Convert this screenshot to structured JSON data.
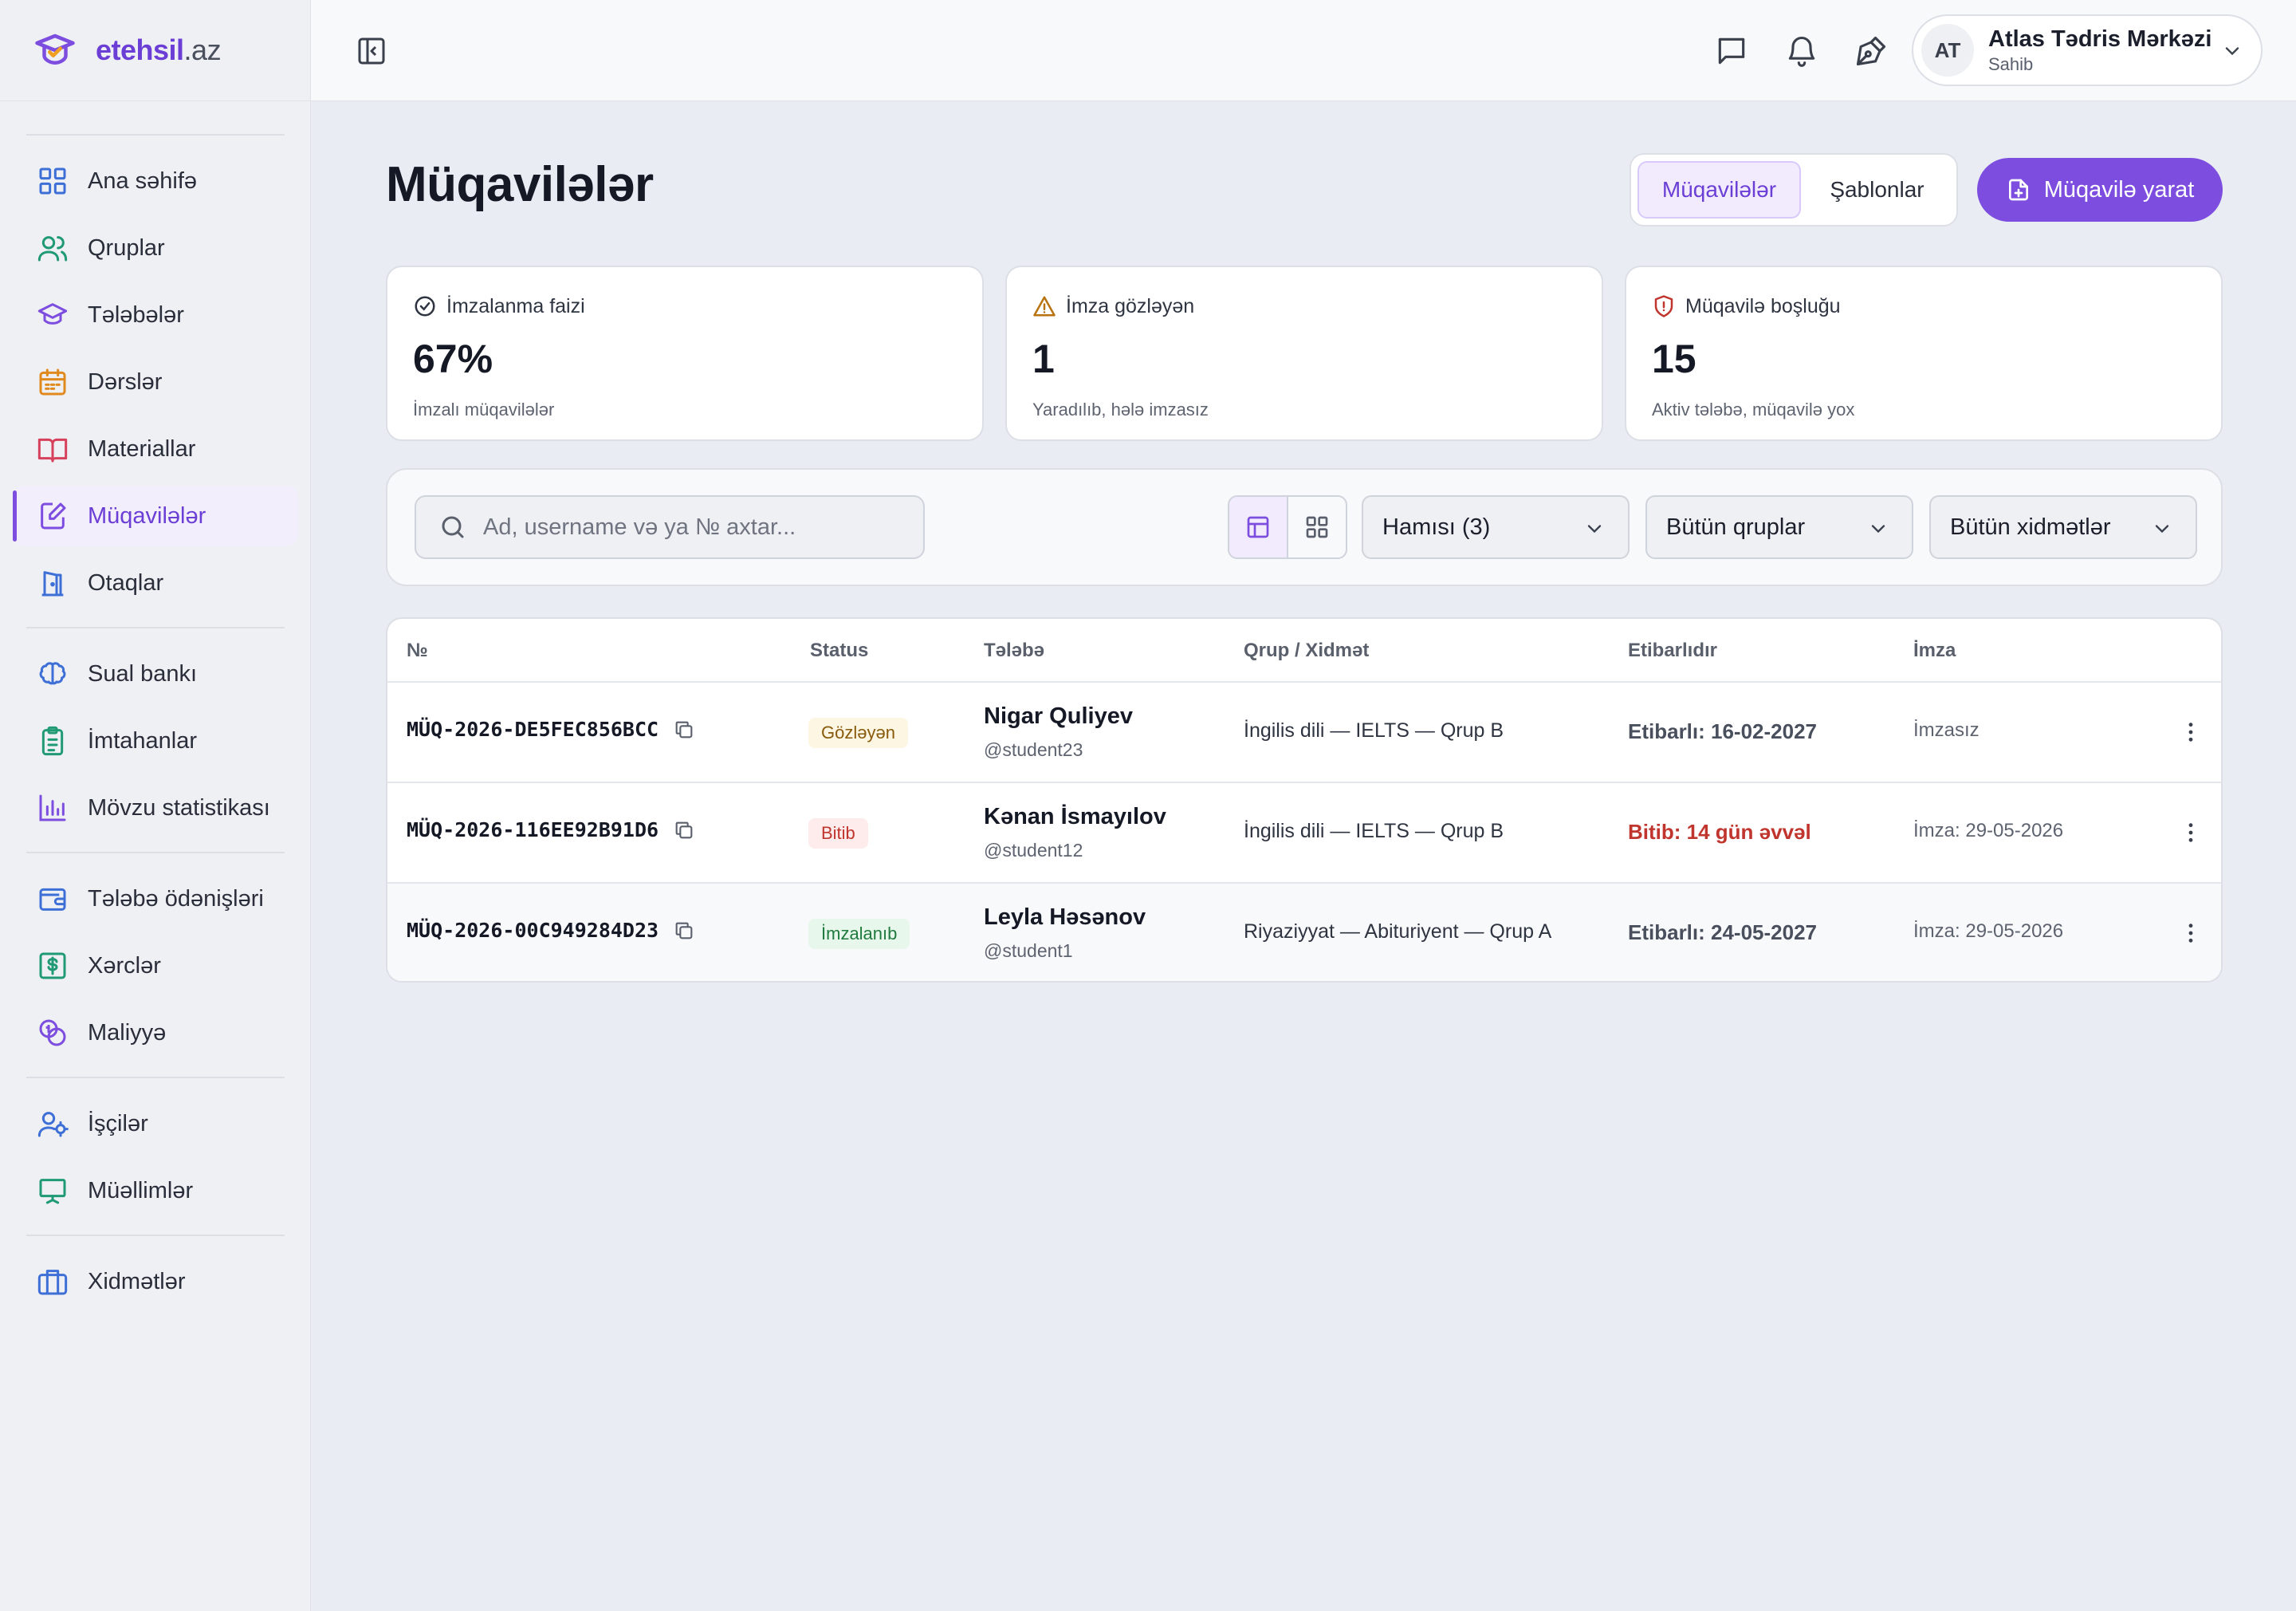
{
  "brand": {
    "name": "etehsil",
    "tld": ".az"
  },
  "sidebar": {
    "items": [
      {
        "label": "Ana səhifə",
        "icon": "grid-icon"
      },
      {
        "label": "Qruplar",
        "icon": "users-icon"
      },
      {
        "label": "Tələbələr",
        "icon": "graduation-cap-icon"
      },
      {
        "label": "Dərslər",
        "icon": "calendar-icon"
      },
      {
        "label": "Materiallar",
        "icon": "book-open-icon"
      },
      {
        "label": "Müqavilələr",
        "icon": "file-pen-icon",
        "active": true
      },
      {
        "label": "Otaqlar",
        "icon": "door-icon"
      },
      {
        "label": "Sual bankı",
        "icon": "brain-icon"
      },
      {
        "label": "İmtahanlar",
        "icon": "clipboard-list-icon"
      },
      {
        "label": "Mövzu statistikası",
        "icon": "bar-chart-icon"
      },
      {
        "label": "Tələbə ödənişləri",
        "icon": "wallet-icon"
      },
      {
        "label": "Xərclər",
        "icon": "dollar-square-icon"
      },
      {
        "label": "Maliyyə",
        "icon": "coins-icon"
      },
      {
        "label": "İşçilər",
        "icon": "user-cog-icon"
      },
      {
        "label": "Müəllimlər",
        "icon": "presentation-icon"
      },
      {
        "label": "Xidmətlər",
        "icon": "briefcase-icon"
      }
    ]
  },
  "topbar": {
    "user": {
      "initials": "AT",
      "name": "Atlas Tədris Mərkəzi",
      "role": "Sahib"
    }
  },
  "page": {
    "title": "Müqavilələr",
    "tabs": [
      "Müqavilələr",
      "Şablonlar"
    ],
    "create_label": "Müqavilə yarat"
  },
  "stats": [
    {
      "label": "İmzalanma faizi",
      "value": "67%",
      "sub": "İmzalı müqavilələr",
      "icon": "check-circle-icon"
    },
    {
      "label": "İmza gözləyən",
      "value": "1",
      "sub": "Yaradılıb, hələ imzasız",
      "icon": "alert-triangle-icon"
    },
    {
      "label": "Müqavilə boşluğu",
      "value": "15",
      "sub": "Aktiv tələbə, müqavilə yox",
      "icon": "shield-alert-icon"
    }
  ],
  "filters": {
    "search_placeholder": "Ad, username və ya № axtar...",
    "status": "Hamısı (3)",
    "groups": "Bütün qruplar",
    "services": "Bütün xidmətlər"
  },
  "table": {
    "columns": [
      "№",
      "Status",
      "Tələbə",
      "Qrup / Xidmət",
      "Etibarlıdır",
      "İmza"
    ],
    "rows": [
      {
        "no": "MÜQ-2026-DE5FEC856BCC",
        "status": "Gözləyən",
        "status_kind": "pending",
        "name": "Nigar Quliyev",
        "username": "@student23",
        "group": "İngilis dili — IELTS — Qrup B",
        "validity": "Etibarlı: 16-02-2027",
        "validity_kind": "ok",
        "sign": "İmzasız"
      },
      {
        "no": "MÜQ-2026-116EE92B91D6",
        "status": "Bitib",
        "status_kind": "expired",
        "name": "Kənan İsmayılov",
        "username": "@student12",
        "group": "İngilis dili — IELTS — Qrup B",
        "validity": "Bitib: 14 gün əvvəl",
        "validity_kind": "expired",
        "sign": "İmza: 29-05-2026"
      },
      {
        "no": "MÜQ-2026-00C949284D23",
        "status": "İmzalanıb",
        "status_kind": "signed",
        "name": "Leyla Həsənov",
        "username": "@student1",
        "group": "Riyaziyyat — Abituriyent — Qrup A",
        "validity": "Etibarlı: 24-05-2027",
        "validity_kind": "ok",
        "sign": "İmza: 29-05-2026"
      }
    ]
  },
  "colors": {
    "accent": "#7c4ddf",
    "danger": "#c0352d",
    "warning": "#b8720f",
    "success": "#1f7a3e"
  }
}
